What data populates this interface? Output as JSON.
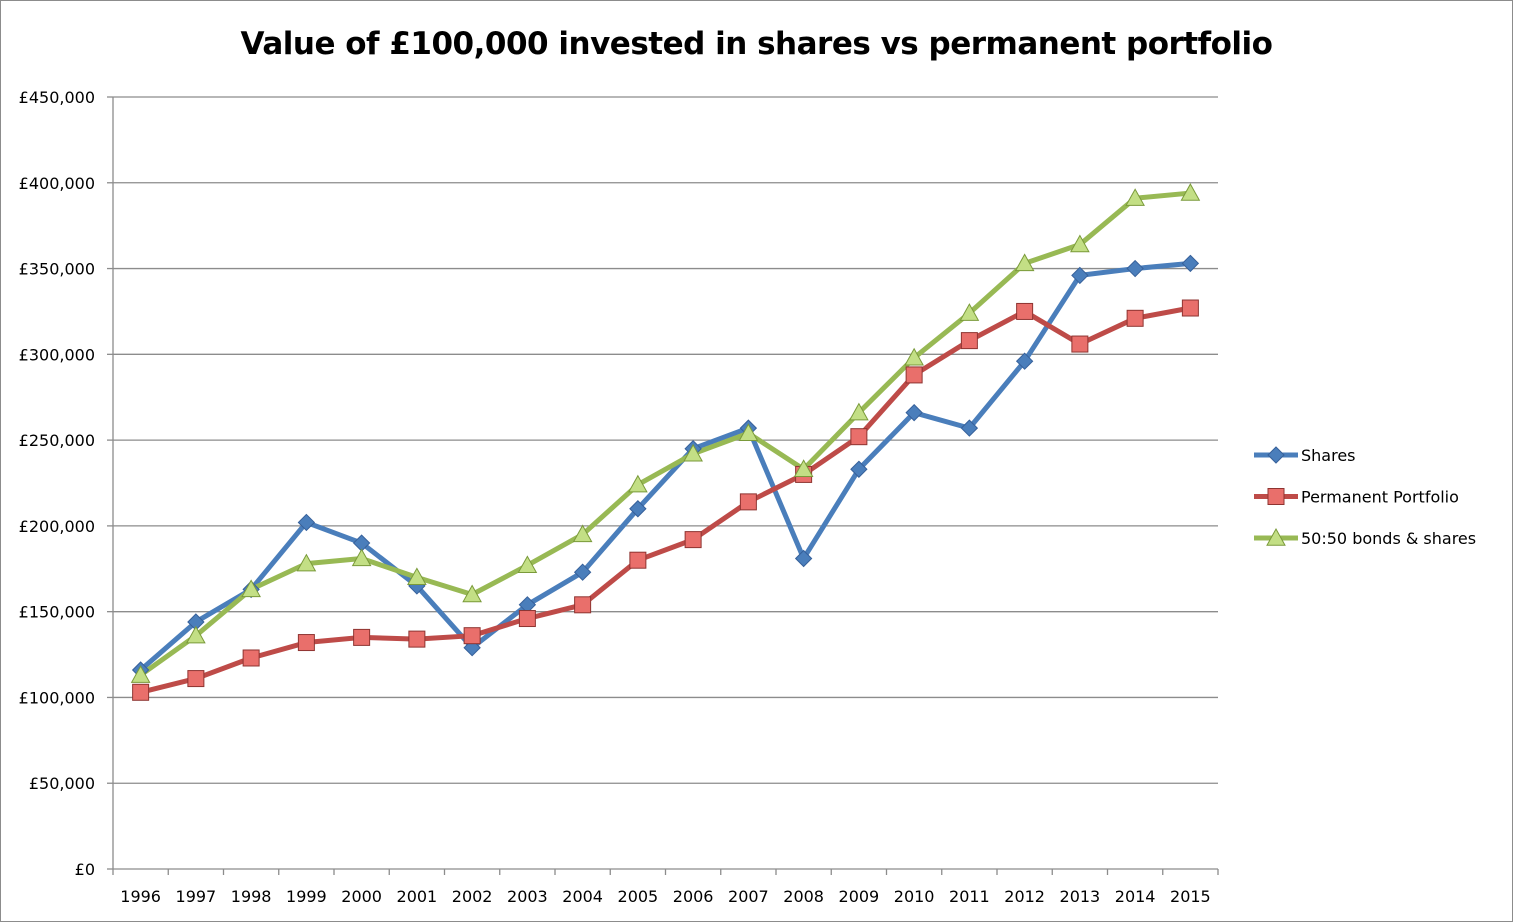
{
  "chart_data": {
    "type": "line",
    "title": "Value of £100,000 invested in shares vs permanent portfolio",
    "categories": [
      "1996",
      "1997",
      "1998",
      "1999",
      "2000",
      "2001",
      "2002",
      "2003",
      "2004",
      "2005",
      "2006",
      "2007",
      "2008",
      "2009",
      "2010",
      "2011",
      "2012",
      "2013",
      "2014",
      "2015"
    ],
    "y_tick_labels": [
      "£0",
      "£50,000",
      "£100,000",
      "£150,000",
      "£200,000",
      "£250,000",
      "£300,000",
      "£350,000",
      "£400,000",
      "£450,000"
    ],
    "ylim": [
      0,
      450000
    ],
    "grid": true,
    "legend_position": "right",
    "series": [
      {
        "name": "Shares",
        "color": "#4a7ebb",
        "marker": "diamond",
        "values": [
          116000,
          144000,
          163000,
          202000,
          190000,
          165000,
          129000,
          154000,
          173000,
          210000,
          245000,
          257000,
          181000,
          233000,
          266000,
          257000,
          296000,
          346000,
          350000,
          353000
        ]
      },
      {
        "name": "Permanent Portfolio",
        "color": "#be4b48",
        "marker": "square",
        "values": [
          103000,
          111000,
          123000,
          132000,
          135000,
          134000,
          136000,
          146000,
          154000,
          180000,
          192000,
          214000,
          230000,
          252000,
          288000,
          308000,
          325000,
          306000,
          321000,
          327000
        ]
      },
      {
        "name": "50:50 bonds & shares",
        "color": "#98b954",
        "marker": "triangle",
        "values": [
          113000,
          136000,
          163000,
          178000,
          181000,
          170000,
          160000,
          177000,
          195000,
          224000,
          242000,
          254000,
          233000,
          266000,
          298000,
          324000,
          353000,
          364000,
          391000,
          394000
        ]
      }
    ]
  }
}
